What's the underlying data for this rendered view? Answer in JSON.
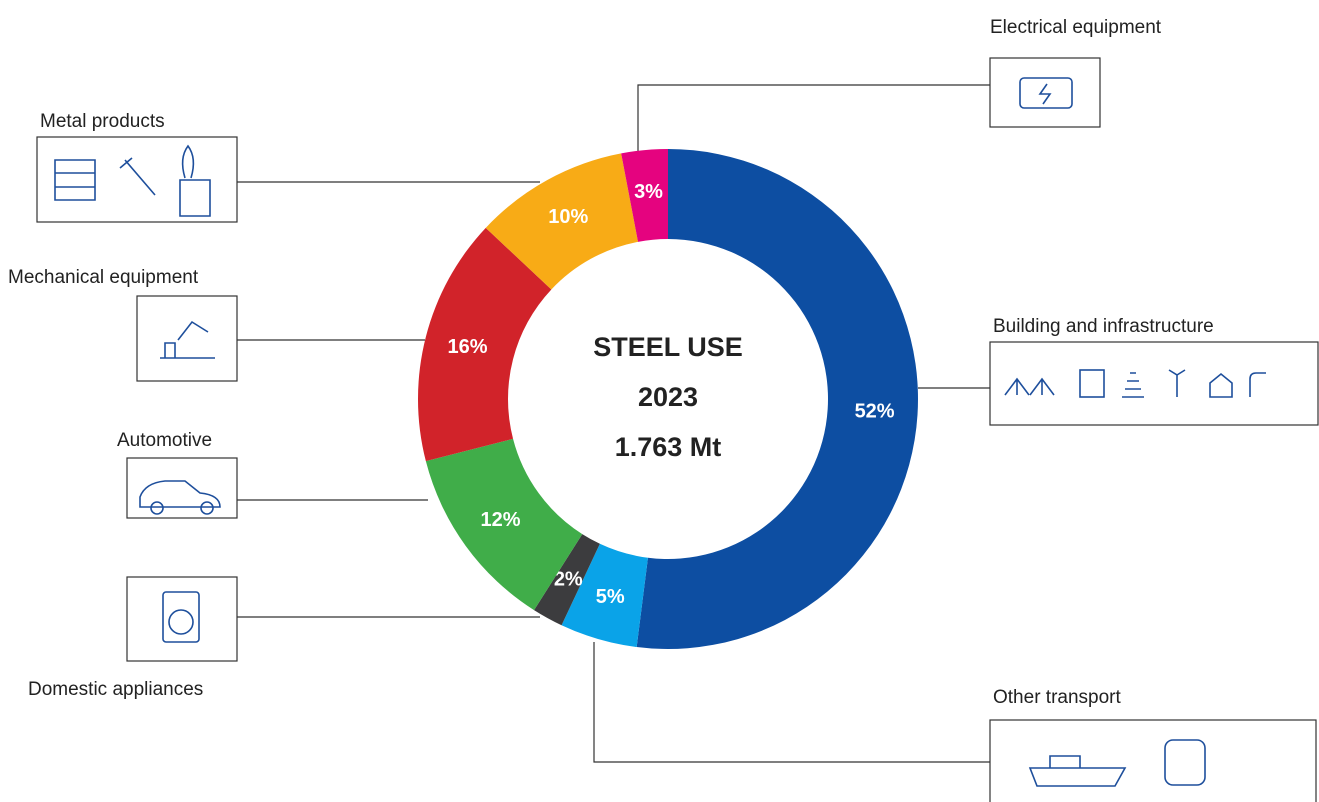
{
  "chart_data": {
    "type": "donut",
    "center_text": [
      "STEEL USE",
      "2023",
      "1.763 Mt"
    ],
    "categories": [
      "Building and infrastructure",
      "Other transport",
      "Domestic appliances",
      "Automotive",
      "Mechanical equipment",
      "Metal products",
      "Electrical equipment"
    ],
    "values": [
      52,
      5,
      2,
      12,
      16,
      10,
      3
    ],
    "value_labels": [
      "52%",
      "5%",
      "2%",
      "12%",
      "16%",
      "10%",
      "3%"
    ],
    "colors": [
      "#0d4ea2",
      "#0aa3e8",
      "#3c3c3e",
      "#40ad49",
      "#d1232a",
      "#f8ab16",
      "#e5037f"
    ]
  }
}
